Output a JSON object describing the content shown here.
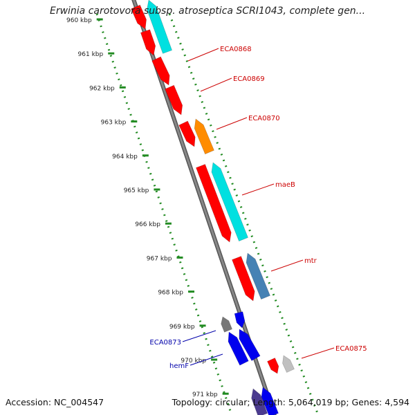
{
  "title": "Erwinia carotovora subsp. atroseptica SCRI1043, complete gen...",
  "footer": {
    "accession": "Accession: NC_004547",
    "topology": "Topology: circular; Length: 5,064,019 bp; Genes: 4,594"
  },
  "ticks": {
    "start_kbp": 960,
    "end_kbp": 971,
    "labels": [
      "960 kbp",
      "961 kbp",
      "962 kbp",
      "963 kbp",
      "964 kbp",
      "965 kbp",
      "966 kbp",
      "967 kbp",
      "968 kbp",
      "969 kbp",
      "970 kbp",
      "971 kbp"
    ]
  },
  "colors": {
    "forward_cds": "#ff0000",
    "reverse_cds_cyan": "#00e0e0",
    "orange_cds": "#ff8c00",
    "steel_cds": "#4682b4",
    "blue_cds": "#0000ee",
    "grey_cds": "#777777",
    "light_grey_cds": "#c0c0c0",
    "backbone": "#888888",
    "tick_mark": "#228b22",
    "red_label": "#cc0000",
    "blue_label": "#0000aa"
  },
  "genes": [
    {
      "label": "ECA0868",
      "label_color": "red"
    },
    {
      "label": "ECA0869",
      "label_color": "red"
    },
    {
      "label": "ECA0870",
      "label_color": "red"
    },
    {
      "label": "maeB",
      "label_color": "red"
    },
    {
      "label": "mtr",
      "label_color": "red"
    },
    {
      "label": "ECA0873",
      "label_color": "blue"
    },
    {
      "label": "hemF",
      "label_color": "blue"
    },
    {
      "label": "ECA0875",
      "label_color": "red"
    }
  ]
}
